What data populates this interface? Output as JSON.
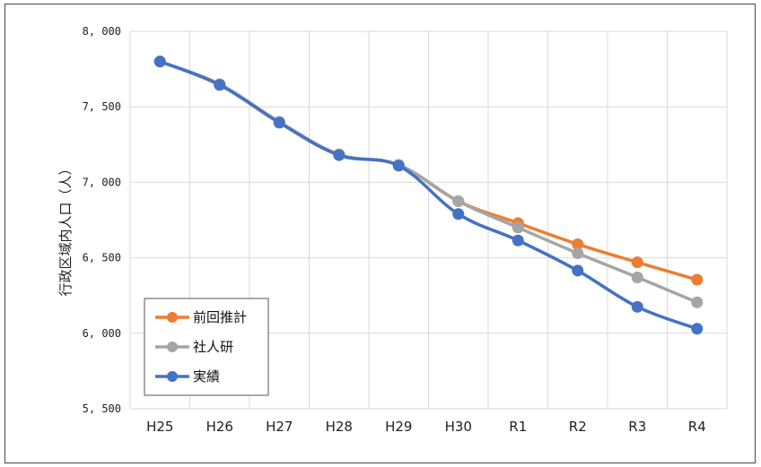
{
  "chart_data": {
    "type": "line",
    "categories": [
      "H25",
      "H26",
      "H27",
      "H28",
      "H29",
      "H30",
      "R1",
      "R2",
      "R3",
      "R4"
    ],
    "ylabel": "行政区域内人口（人）",
    "xlabel": "",
    "title": "",
    "ylim": [
      5500,
      8000
    ],
    "yticks": [
      5500,
      6000,
      6500,
      7000,
      7500,
      8000
    ],
    "ytick_labels": [
      "5, 500",
      "6, 000",
      "6, 500",
      "7, 000",
      "7, 500",
      "8, 000"
    ],
    "grid": true,
    "legend_position": "bottom-left",
    "series": [
      {
        "name": "前回推計",
        "color": "#ED7D31",
        "values": [
          7800,
          7650,
          7400,
          7185,
          7115,
          6875,
          6730,
          6590,
          6470,
          6355
        ]
      },
      {
        "name": "社人研",
        "color": "#A5A5A5",
        "values": [
          7800,
          7650,
          7400,
          7185,
          7115,
          6875,
          6700,
          6530,
          6370,
          6205
        ]
      },
      {
        "name": "実績",
        "color": "#4472C4",
        "values": [
          7800,
          7645,
          7395,
          7180,
          7110,
          6790,
          6615,
          6415,
          6175,
          6030
        ]
      }
    ]
  }
}
